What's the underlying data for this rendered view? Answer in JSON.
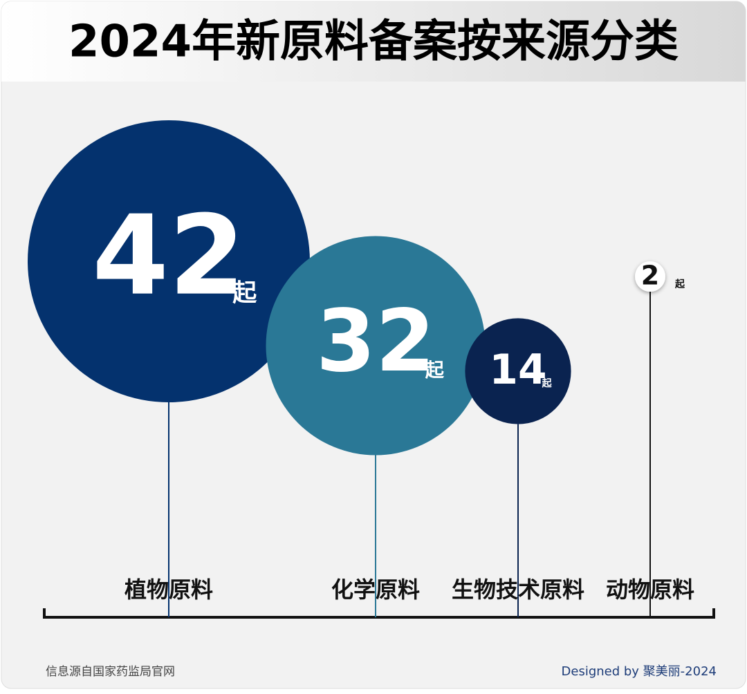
{
  "chart_data": {
    "type": "bubble",
    "title": "2024年新原料备案按来源分类",
    "categories": [
      "植物原料",
      "化学原料",
      "生物技术原料",
      "动物原料"
    ],
    "values": [
      42,
      32,
      14,
      2
    ],
    "unit": "起",
    "colors": [
      "#04326e",
      "#2a7896",
      "#0a2350",
      "#ffffff"
    ],
    "source": "信息源自国家药监局官网",
    "credit": "Designed by 聚美丽-2024"
  }
}
